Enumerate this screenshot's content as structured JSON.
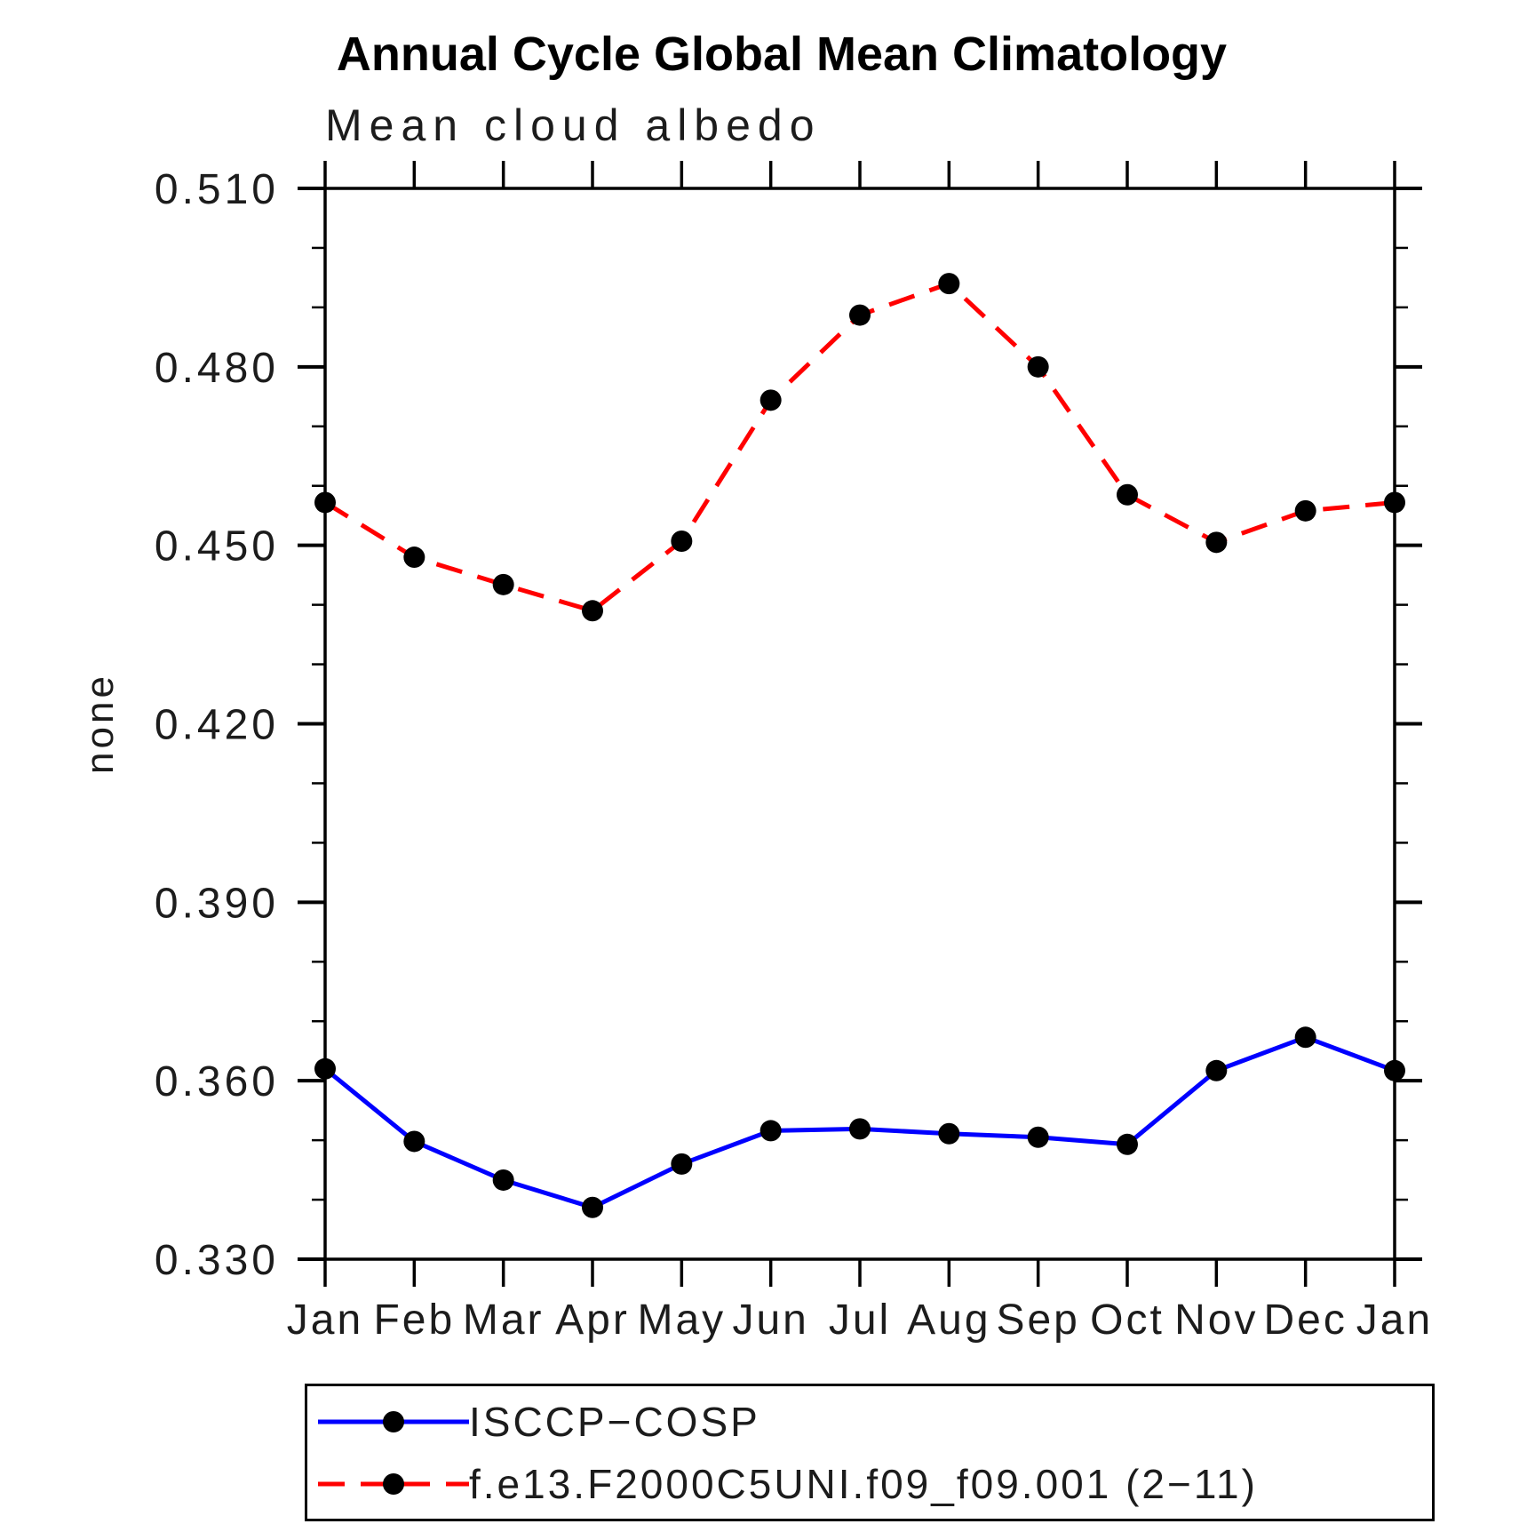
{
  "chart_data": {
    "type": "line",
    "title": "Annual Cycle Global Mean Climatology",
    "subtitle": "Mean cloud albedo",
    "ylabel": "none",
    "xlabel": "",
    "x_categories": [
      "Jan",
      "Feb",
      "Mar",
      "Apr",
      "May",
      "Jun",
      "Jul",
      "Aug",
      "Sep",
      "Oct",
      "Nov",
      "Dec",
      "Jan"
    ],
    "ylim": [
      0.33,
      0.51
    ],
    "y_major_ticks": [
      0.33,
      0.36,
      0.39,
      0.42,
      0.45,
      0.48,
      0.51
    ],
    "y_tick_labels": [
      "0.330",
      "0.360",
      "0.390",
      "0.420",
      "0.450",
      "0.480",
      "0.510"
    ],
    "y_minor_step": 0.01,
    "grid": false,
    "legend_position": "bottom-left-box",
    "axis_color": "#000000",
    "marker_color": "#000000",
    "series": [
      {
        "name": "ISCCP−COSP",
        "color": "#0000ff",
        "style": "solid",
        "marker": "circle",
        "values": [
          0.362,
          0.3498,
          0.3433,
          0.3387,
          0.346,
          0.3516,
          0.3519,
          0.3511,
          0.3505,
          0.3493,
          0.3617,
          0.3673,
          0.3617
        ]
      },
      {
        "name": "f.e13.F2000C5UNI.f09_f09.001 (2−11)",
        "color": "#ff0000",
        "style": "dashed",
        "marker": "circle",
        "values": [
          0.4572,
          0.448,
          0.4434,
          0.439,
          0.4507,
          0.4744,
          0.4887,
          0.494,
          0.48,
          0.4585,
          0.4505,
          0.4558,
          0.4572
        ]
      }
    ]
  }
}
